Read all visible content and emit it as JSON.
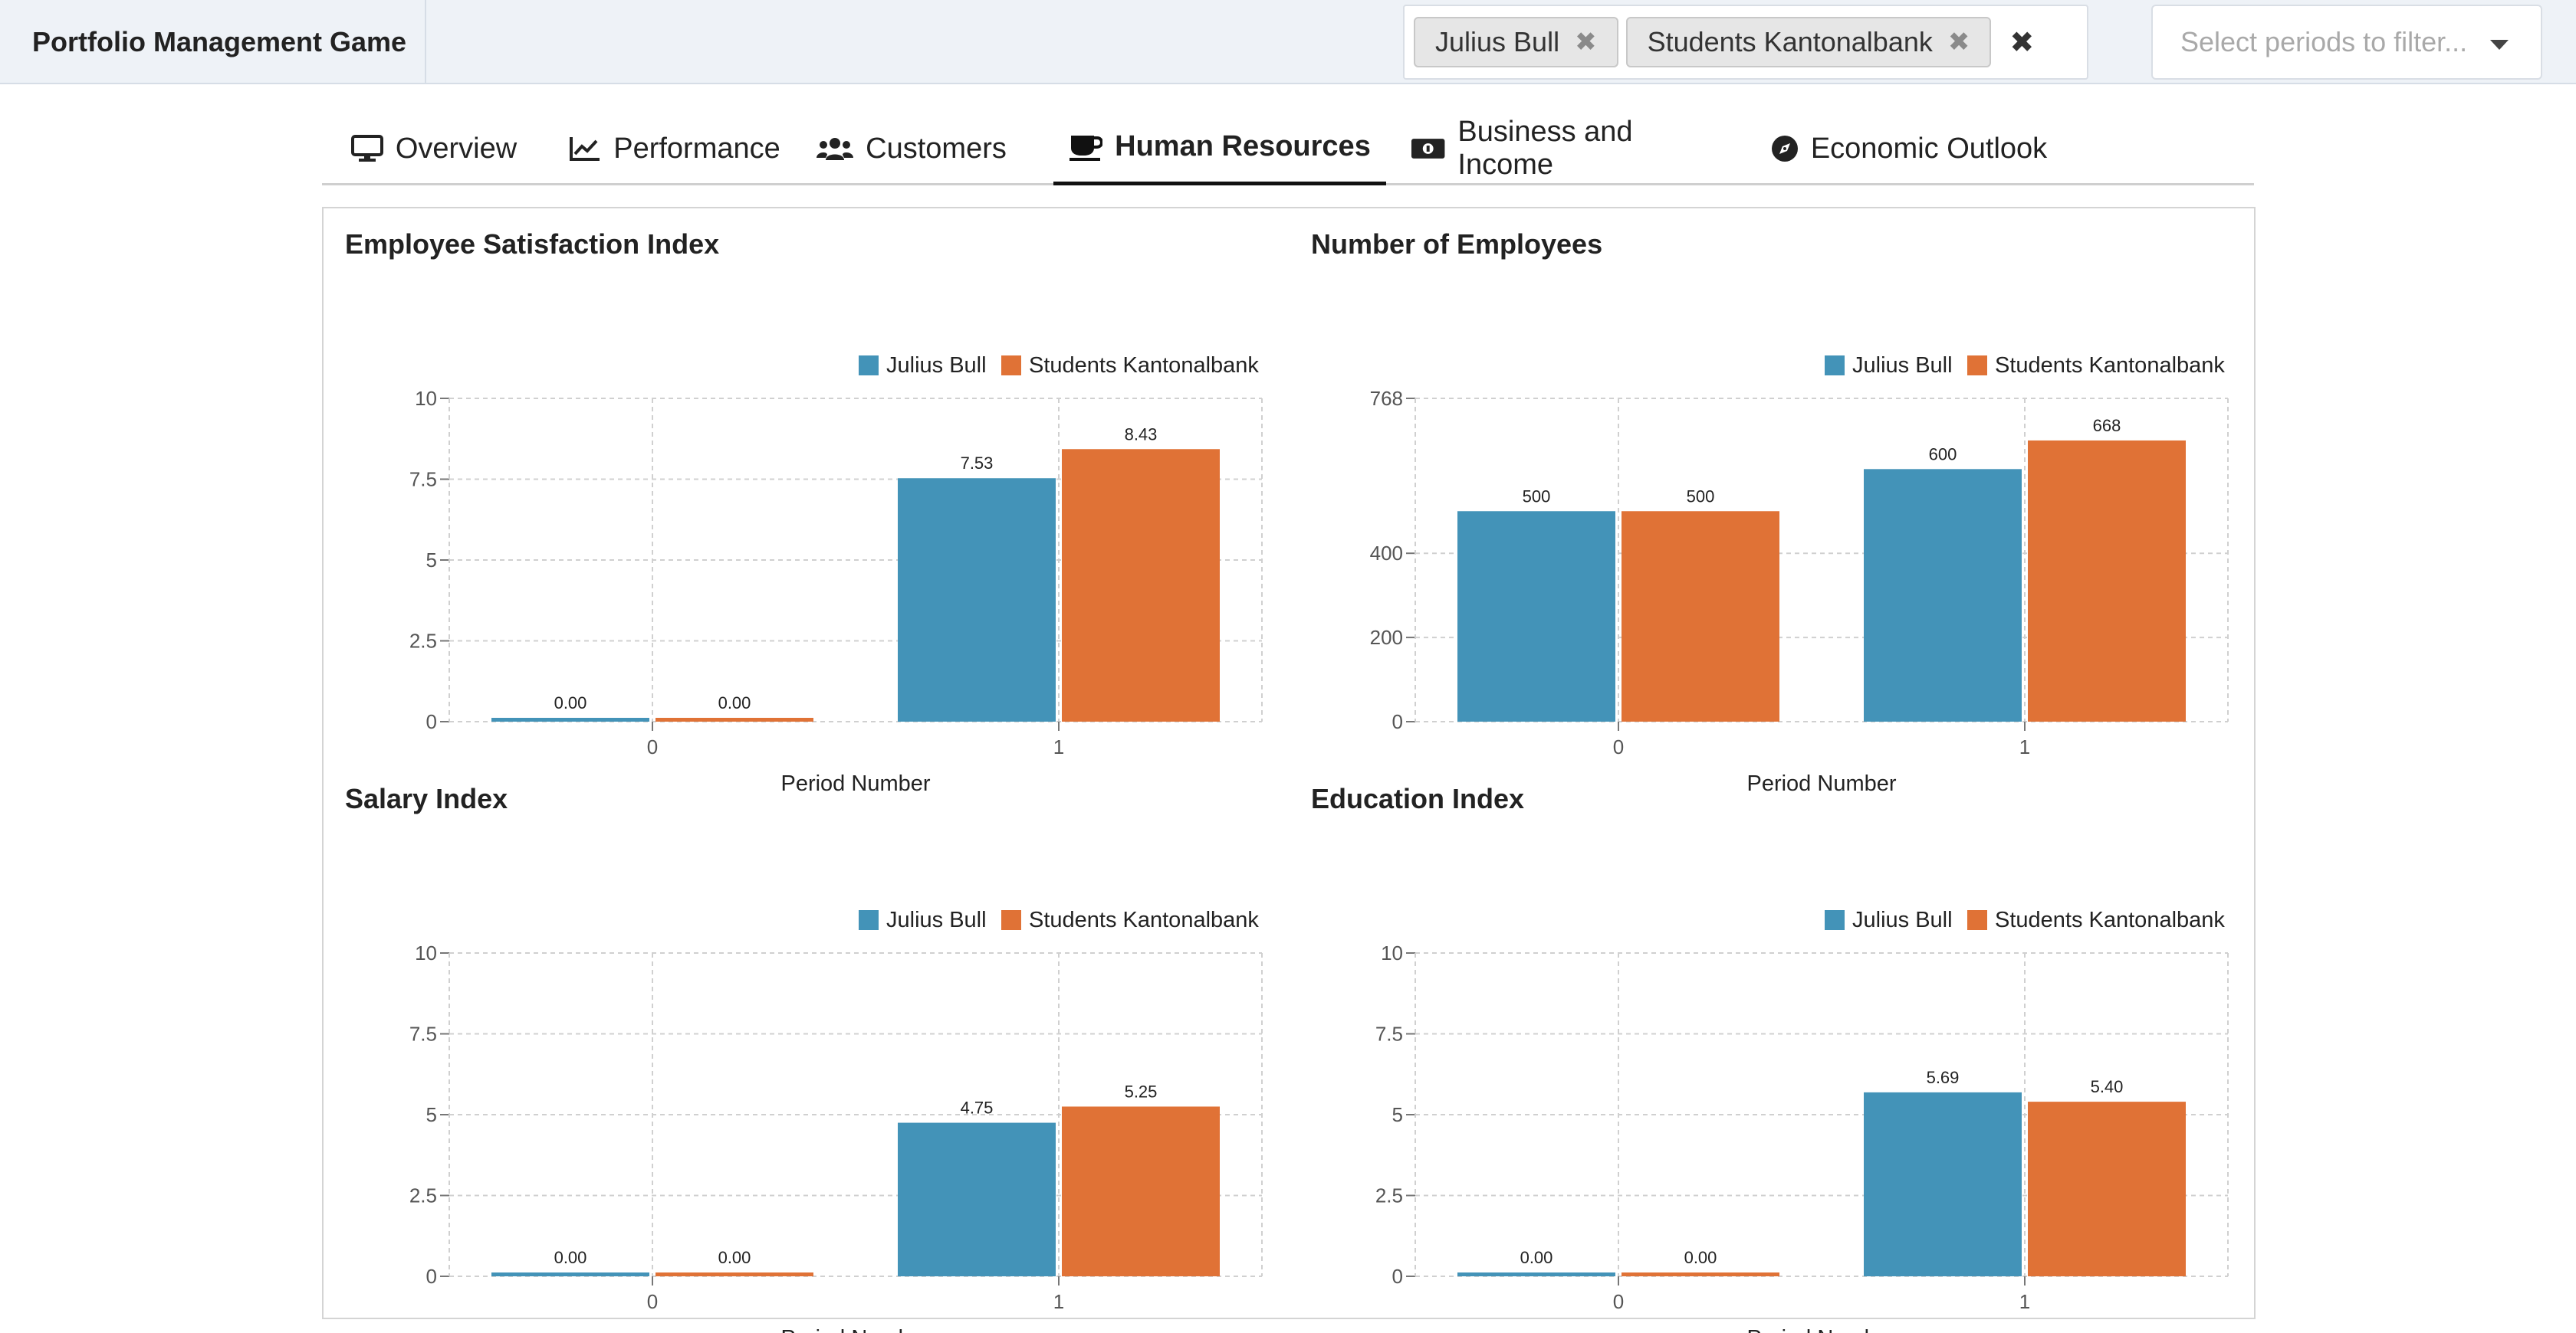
{
  "app": {
    "title": "Portfolio Management Game"
  },
  "filters": {
    "teams": [
      {
        "label": "Julius Bull",
        "remove_icon": "times-icon"
      },
      {
        "label": "Students Kantonalbank",
        "remove_icon": "times-icon"
      }
    ],
    "clear_icon": "times-icon",
    "period_placeholder": "Select periods to filter..."
  },
  "tabs": [
    {
      "label": "Overview",
      "icon": "desktop-icon",
      "active": false
    },
    {
      "label": "Performance",
      "icon": "line-chart-icon",
      "active": false
    },
    {
      "label": "Customers",
      "icon": "users-icon",
      "active": false
    },
    {
      "label": "Human Resources",
      "icon": "coffee-icon",
      "active": true
    },
    {
      "label": "Business and Income",
      "icon": "money-bill-icon",
      "active": false
    },
    {
      "label": "Economic Outlook",
      "icon": "compass-icon",
      "active": false
    }
  ],
  "colors": {
    "julius_bull": "#4393b8",
    "students_kantonalbank": "#e07236"
  },
  "chart_data": [
    {
      "type": "bar",
      "title": "Employee Satisfaction Index",
      "xlabel": "Period Number",
      "ylabel": "",
      "categories": [
        "0",
        "1"
      ],
      "yticks": [
        "0",
        "2.5",
        "5",
        "7.5",
        "10"
      ],
      "ytick_values": [
        0,
        2.5,
        5,
        7.5,
        10
      ],
      "ylim": [
        0,
        10
      ],
      "grid": true,
      "legend": "top-right",
      "series": [
        {
          "name": "Julius Bull",
          "values": [
            0,
            7.53
          ],
          "labels": [
            "0.00",
            "7.53"
          ]
        },
        {
          "name": "Students Kantonalbank",
          "values": [
            0,
            8.43
          ],
          "labels": [
            "0.00",
            "8.43"
          ]
        }
      ]
    },
    {
      "type": "bar",
      "title": "Number of Employees",
      "xlabel": "Period Number",
      "ylabel": "",
      "categories": [
        "0",
        "1"
      ],
      "yticks": [
        "0",
        "200",
        "400",
        "768"
      ],
      "ytick_values": [
        0,
        200,
        400,
        768
      ],
      "ylim": [
        0,
        768
      ],
      "grid": true,
      "legend": "top-right",
      "series": [
        {
          "name": "Julius Bull",
          "values": [
            500,
            600
          ],
          "labels": [
            "500",
            "600"
          ]
        },
        {
          "name": "Students Kantonalbank",
          "values": [
            500,
            668
          ],
          "labels": [
            "500",
            "668"
          ]
        }
      ]
    },
    {
      "type": "bar",
      "title": "Salary Index",
      "xlabel": "Period Number",
      "ylabel": "",
      "categories": [
        "0",
        "1"
      ],
      "yticks": [
        "0",
        "2.5",
        "5",
        "7.5",
        "10"
      ],
      "ytick_values": [
        0,
        2.5,
        5,
        7.5,
        10
      ],
      "ylim": [
        0,
        10
      ],
      "grid": true,
      "legend": "top-right",
      "series": [
        {
          "name": "Julius Bull",
          "values": [
            0,
            4.75
          ],
          "labels": [
            "0.00",
            "4.75"
          ]
        },
        {
          "name": "Students Kantonalbank",
          "values": [
            0,
            5.25
          ],
          "labels": [
            "0.00",
            "5.25"
          ]
        }
      ]
    },
    {
      "type": "bar",
      "title": "Education Index",
      "xlabel": "Period Number",
      "ylabel": "",
      "categories": [
        "0",
        "1"
      ],
      "yticks": [
        "0",
        "2.5",
        "5",
        "7.5",
        "10"
      ],
      "ytick_values": [
        0,
        2.5,
        5,
        7.5,
        10
      ],
      "ylim": [
        0,
        10
      ],
      "grid": true,
      "legend": "top-right",
      "series": [
        {
          "name": "Julius Bull",
          "values": [
            0,
            5.69
          ],
          "labels": [
            "0.00",
            "5.69"
          ]
        },
        {
          "name": "Students Kantonalbank",
          "values": [
            0,
            5.4
          ],
          "labels": [
            "0.00",
            "5.40"
          ]
        }
      ]
    }
  ]
}
